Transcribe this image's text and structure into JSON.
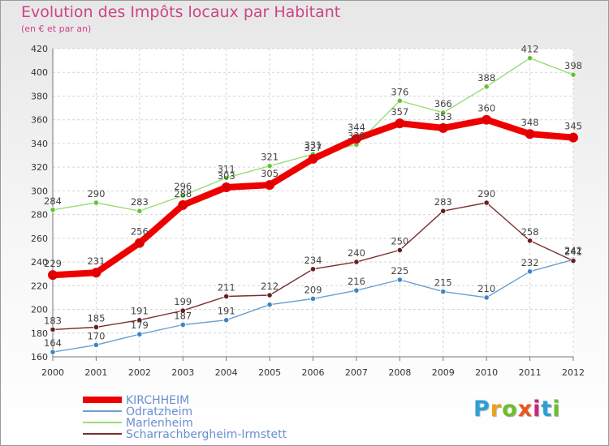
{
  "title": "Evolution des Impôts locaux par Habitant",
  "subtitle": "(en € et par an)",
  "brand": "Proxiti",
  "brand_colors": [
    "#2d9fd8",
    "#e8a21c",
    "#6cbf2a",
    "#e8581c",
    "#c12a7e",
    "#2d9fd8",
    "#6cbf2a"
  ],
  "chart_data": {
    "type": "line",
    "title": "Evolution des Impôts locaux par Habitant",
    "subtitle": "(en € et par an)",
    "x": [
      "2000",
      "2001",
      "2002",
      "2003",
      "2004",
      "2005",
      "2006",
      "2007",
      "2008",
      "2009",
      "2010",
      "2011",
      "2012"
    ],
    "ylim": [
      160,
      420
    ],
    "yticks": [
      "160",
      "180",
      "200",
      "220",
      "240",
      "260",
      "280",
      "300",
      "320",
      "340",
      "360",
      "380",
      "400",
      "420"
    ],
    "grid": true,
    "legend": "bottom-left",
    "series": [
      {
        "name": "KIRCHHEIM",
        "color": "#ee0000",
        "point_color": "#dd0000",
        "emphasis": true,
        "values": [
          229,
          231,
          256,
          288,
          303,
          305,
          327,
          344,
          357,
          353,
          360,
          348,
          345
        ]
      },
      {
        "name": "Odratzheim",
        "color": "#6aa0d0",
        "point_color": "#3c86c6",
        "emphasis": false,
        "values": [
          164,
          170,
          179,
          187,
          191,
          204,
          209,
          216,
          225,
          215,
          210,
          232,
          242
        ]
      },
      {
        "name": "Marlenheim",
        "color": "#99dd77",
        "point_color": "#66c23a",
        "emphasis": false,
        "values": [
          284,
          290,
          283,
          296,
          311,
          321,
          331,
          339,
          376,
          366,
          388,
          412,
          398
        ]
      },
      {
        "name": "Scharrachbergheim-Irmstett",
        "color": "#7a2e2e",
        "point_color": "#6a1f1f",
        "emphasis": false,
        "values": [
          183,
          185,
          191,
          199,
          211,
          212,
          234,
          240,
          250,
          283,
          290,
          258,
          241
        ]
      }
    ],
    "data_labels": [
      [
        "229",
        "231",
        "256",
        "288",
        "303",
        "305",
        "327",
        "344",
        "357",
        "353",
        "360",
        "348",
        "345"
      ],
      [
        "164",
        "170",
        "179",
        "187",
        "191",
        "",
        "209",
        "216",
        "225",
        "215",
        "210",
        "232",
        "242"
      ],
      [
        "284",
        "290",
        "283",
        "296",
        "311",
        "321",
        "331",
        "339",
        "376",
        "366",
        "388",
        "412",
        "398"
      ],
      [
        "183",
        "185",
        "191",
        "199",
        "211",
        "212",
        "234",
        "240",
        "250",
        "283",
        "290",
        "258",
        "241"
      ]
    ]
  }
}
